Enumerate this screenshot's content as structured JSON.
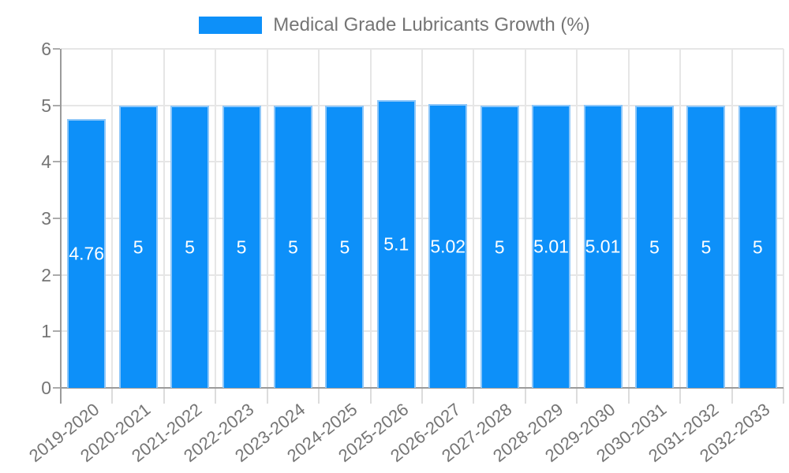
{
  "legend": {
    "label": "Medical Grade Lubricants Growth (%)",
    "swatch_color": "#0d90f9"
  },
  "chart_data": {
    "type": "bar",
    "title": "Medical Grade Lubricants Growth (%)",
    "categories": [
      "2019-2020",
      "2020-2021",
      "2021-2022",
      "2022-2023",
      "2023-2024",
      "2024-2025",
      "2025-2026",
      "2026-2027",
      "2027-2028",
      "2028-2029",
      "2029-2030",
      "2030-2031",
      "2031-2032",
      "2032-2033"
    ],
    "values": [
      4.76,
      5,
      5,
      5,
      5,
      5,
      5.1,
      5.02,
      5,
      5.01,
      5.01,
      5,
      5,
      5
    ],
    "value_labels": [
      "4.76",
      "5",
      "5",
      "5",
      "5",
      "5",
      "5.1",
      "5.02",
      "5",
      "5.01",
      "5.01",
      "5",
      "5",
      "5"
    ],
    "xlabel": "",
    "ylabel": "",
    "ylim": [
      0,
      6
    ],
    "yticks": [
      0,
      1,
      2,
      3,
      4,
      5,
      6
    ],
    "grid": "on",
    "legend_position": "top-center",
    "colors": {
      "bar_fill": "#0d90f9",
      "bar_border": "#8ec7f9",
      "value_label": "#ffffff",
      "axis_text": "#757575",
      "grid_line": "#e6e6e6",
      "axis_line": "#9b9b9b",
      "tick_mark": "#ababab",
      "x_tick_mark": "#dcdcdc"
    }
  }
}
